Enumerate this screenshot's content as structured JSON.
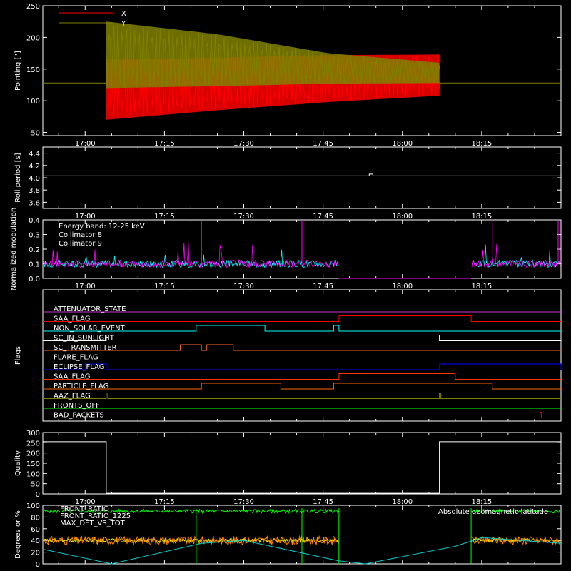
{
  "chart_data": [
    {
      "type": "line",
      "ylabel": "Pointing [\"]",
      "ylim": [
        45,
        250
      ],
      "yticks": [
        "50",
        "100",
        "150",
        "200",
        "250"
      ],
      "xticks": [
        "17:00",
        "17:15",
        "17:30",
        "17:45",
        "18:00",
        "18:15"
      ],
      "legend_position": "top-left",
      "series": [
        {
          "name": "X",
          "color": "#ff0000",
          "start": "17:04",
          "end": "18:07",
          "envelope_upper": [
            165,
            168,
            172,
            173
          ],
          "envelope_lower": [
            70,
            85,
            98,
            108
          ]
        },
        {
          "name": "Y",
          "color": "#808000",
          "start": "17:04",
          "end": "18:07",
          "envelope_upper": [
            225,
            205,
            175,
            160
          ],
          "envelope_lower": [
            120,
            123,
            127,
            128
          ]
        }
      ],
      "constant_line": 128
    },
    {
      "type": "line",
      "ylabel": "Roll period [s]",
      "ylim": [
        3.5,
        4.5
      ],
      "yticks": [
        "3.6",
        "3.8",
        "4.0",
        "4.2",
        "4.4"
      ],
      "xticks": [
        "17:00",
        "17:15",
        "17:30",
        "17:45",
        "18:00",
        "18:15"
      ],
      "series": [
        {
          "color": "#ffffff",
          "value": 4.03,
          "blip_at": "17:54",
          "blip_value": 4.06
        }
      ]
    },
    {
      "type": "line",
      "ylabel": "Normalized modulation",
      "ylim": [
        0,
        0.4
      ],
      "yticks": [
        "0.0",
        "0.1",
        "0.2",
        "0.3",
        "0.4"
      ],
      "xticks": [
        "17:00",
        "17:15",
        "17:30",
        "17:45",
        "18:00",
        "18:15"
      ],
      "annotation": "Energy band: 12-25 keV",
      "series": [
        {
          "name": "Collimator 8",
          "color": "#00ffff",
          "level": 0.1,
          "gap": [
            "17:48",
            "18:13"
          ]
        },
        {
          "name": "Collimator 9",
          "color": "#ff00ff",
          "level": 0.1,
          "gap": [
            "17:48",
            "18:13"
          ]
        }
      ]
    },
    {
      "type": "line",
      "ylabel": "Flags",
      "flags": [
        {
          "name": "ATTENUATOR_STATE",
          "color": "#cc33cc",
          "high": []
        },
        {
          "name": "SAA_FLAG",
          "color": "#ff0000",
          "high": [
            [
              "17:48",
              "18:13"
            ]
          ]
        },
        {
          "name": "NON_SOLAR_EVENT",
          "color": "#00ffff",
          "high": [
            [
              "17:21",
              "17:34"
            ],
            [
              "17:47",
              "17:48"
            ]
          ]
        },
        {
          "name": "SC_IN_SUNLIGHT",
          "color": "#ffffff",
          "high": [
            [
              "17:04",
              "18:07"
            ]
          ]
        },
        {
          "name": "SC_TRANSMITTER",
          "color": "#ff6633",
          "high": [
            [
              "17:18",
              "17:22"
            ],
            [
              "17:23",
              "17:28"
            ]
          ]
        },
        {
          "name": "FLARE_FLAG",
          "color": "#ffff00",
          "high": []
        },
        {
          "name": "ECLIPSE_FLAG",
          "color": "#0000ff",
          "high": [
            [
              "17:00",
              "17:04"
            ],
            [
              "18:07",
              "18:30"
            ]
          ]
        },
        {
          "name": "SAA_FLAG",
          "color": "#ff3300",
          "high": [
            [
              "17:48",
              "18:10"
            ]
          ]
        },
        {
          "name": "PARTICLE_FLAG",
          "color": "#ff6600",
          "high": [
            [
              "17:22",
              "17:37"
            ],
            [
              "17:47",
              "18:17"
            ]
          ]
        },
        {
          "name": "AAZ_FLAG",
          "color": "#808000",
          "high": [
            [
              "17:04",
              "17:04"
            ],
            [
              "18:07",
              "18:07"
            ]
          ]
        },
        {
          "name": "FRONTS_OFF",
          "color": "#00ff00",
          "high": []
        },
        {
          "name": "BAD_PACKETS",
          "color": "#ff0000",
          "high": [
            [
              "18:26",
              "18:26"
            ]
          ]
        }
      ]
    },
    {
      "type": "line",
      "ylabel": "Quality",
      "ylim": [
        0,
        300
      ],
      "yticks": [
        "0",
        "50",
        "100",
        "150",
        "200",
        "250",
        "300"
      ],
      "xticks": [
        "17:00",
        "17:15",
        "17:30",
        "17:45",
        "18:00",
        "18:15"
      ],
      "series": [
        {
          "color": "#ffffff",
          "segments": [
            [
              "16:52",
              "17:04",
              255
            ],
            [
              "17:04",
              "18:07",
              3
            ],
            [
              "18:07",
              "18:30",
              255
            ]
          ]
        }
      ]
    },
    {
      "type": "line",
      "ylabel": "Degrees or %",
      "ylim": [
        0,
        100
      ],
      "yticks": [
        "0",
        "20",
        "40",
        "60",
        "80",
        "100"
      ],
      "legend_right": "Absolute geomagnetic latitude",
      "series": [
        {
          "name": "FRONT_RATIO",
          "color": "#00ff00",
          "level": 90
        },
        {
          "name": "FRONT_RATIO_1225",
          "color": "#ffff00",
          "level": 40
        },
        {
          "name": "MAX_DET_VS_TOT",
          "color": "#ff8800",
          "level": 40
        },
        {
          "name": "Absolute geomagnetic latitude",
          "color": "#00cccc",
          "points": [
            [
              "16:52",
              25
            ],
            [
              "17:05",
              0
            ],
            [
              "17:22",
              35
            ],
            [
              "17:30",
              40
            ],
            [
              "17:48",
              5
            ],
            [
              "17:53",
              0
            ],
            [
              "18:10",
              30
            ],
            [
              "18:15",
              45
            ],
            [
              "18:30",
              35
            ]
          ]
        }
      ]
    }
  ]
}
